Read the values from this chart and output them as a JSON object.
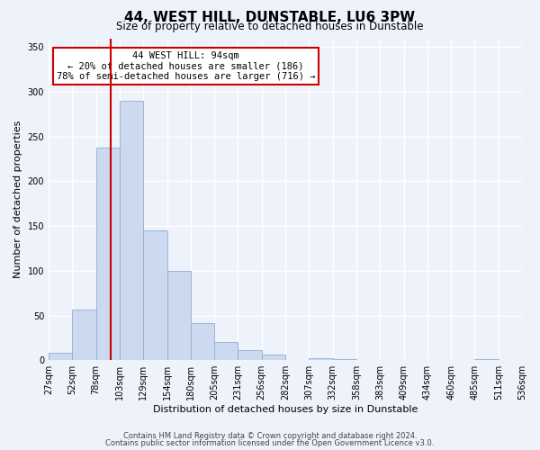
{
  "title": "44, WEST HILL, DUNSTABLE, LU6 3PW",
  "subtitle": "Size of property relative to detached houses in Dunstable",
  "xlabel": "Distribution of detached houses by size in Dunstable",
  "ylabel": "Number of detached properties",
  "bar_values": [
    8,
    57,
    238,
    290,
    145,
    100,
    41,
    20,
    11,
    6,
    0,
    2,
    1,
    0,
    0,
    0,
    0,
    0,
    1,
    0
  ],
  "x_labels": [
    "27sqm",
    "52sqm",
    "78sqm",
    "103sqm",
    "129sqm",
    "154sqm",
    "180sqm",
    "205sqm",
    "231sqm",
    "256sqm",
    "282sqm",
    "307sqm",
    "332sqm",
    "358sqm",
    "383sqm",
    "409sqm",
    "434sqm",
    "460sqm",
    "485sqm",
    "511sqm",
    "536sqm"
  ],
  "bar_color": "#ccd9ef",
  "bar_edge_color": "#8eadd4",
  "vline_x": 2.64,
  "vline_color": "#cc0000",
  "ylim": [
    0,
    360
  ],
  "yticks": [
    0,
    50,
    100,
    150,
    200,
    250,
    300,
    350
  ],
  "annotation_title": "44 WEST HILL: 94sqm",
  "annotation_line1": "← 20% of detached houses are smaller (186)",
  "annotation_line2": "78% of semi-detached houses are larger (716) →",
  "annotation_box_color": "#cc0000",
  "footer1": "Contains HM Land Registry data © Crown copyright and database right 2024.",
  "footer2": "Contains public sector information licensed under the Open Government Licence v3.0.",
  "bg_color": "#eef2fb",
  "plot_bg_color": "#eef2fb",
  "grid_color": "#ffffff",
  "title_fontsize": 11,
  "subtitle_fontsize": 8.5,
  "axis_label_fontsize": 8,
  "tick_fontsize": 7,
  "annotation_fontsize": 7.5,
  "footer_fontsize": 6
}
